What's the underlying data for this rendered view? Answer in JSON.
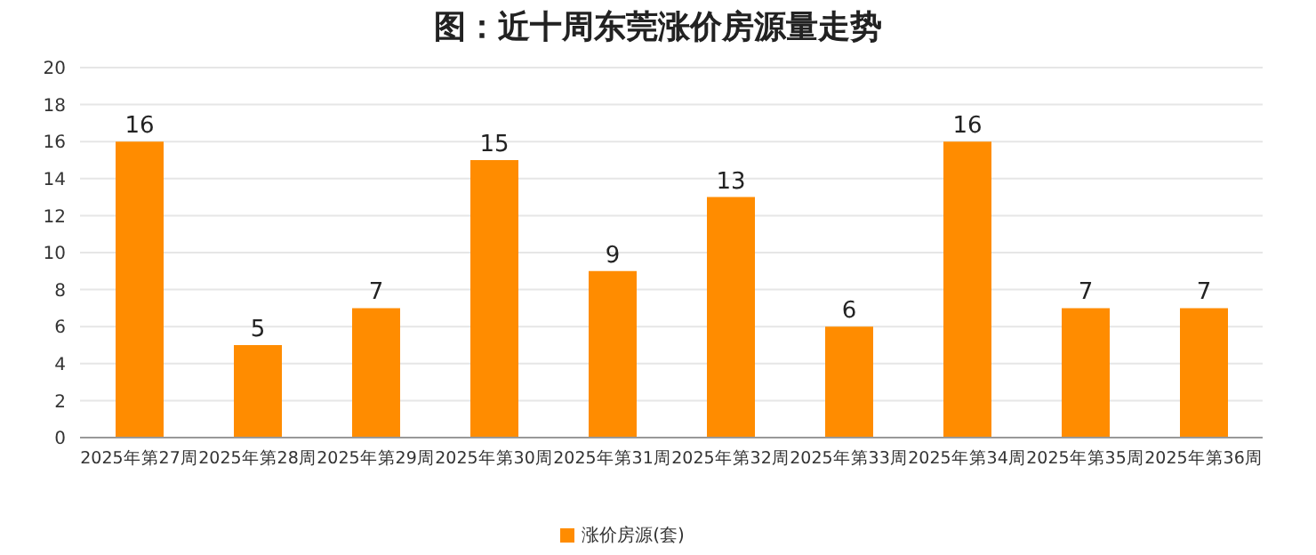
{
  "chart_data": {
    "type": "bar",
    "title": "图：近十周东莞涨价房源量走势",
    "categories": [
      "2025年第27周",
      "2025年第28周",
      "2025年第29周",
      "2025年第30周",
      "2025年第31周",
      "2025年第32周",
      "2025年第33周",
      "2025年第34周",
      "2025年第35周",
      "2025年第36周"
    ],
    "series": [
      {
        "name": "涨价房源(套)",
        "color": "#ff8c00",
        "values": [
          16,
          5,
          7,
          15,
          9,
          13,
          6,
          16,
          7,
          7
        ]
      }
    ],
    "ylim": [
      0,
      20
    ],
    "yticks": [
      0,
      2,
      4,
      6,
      8,
      10,
      12,
      14,
      16,
      18,
      20
    ],
    "grid": "y",
    "legend": "bottom",
    "data_labels": true
  }
}
